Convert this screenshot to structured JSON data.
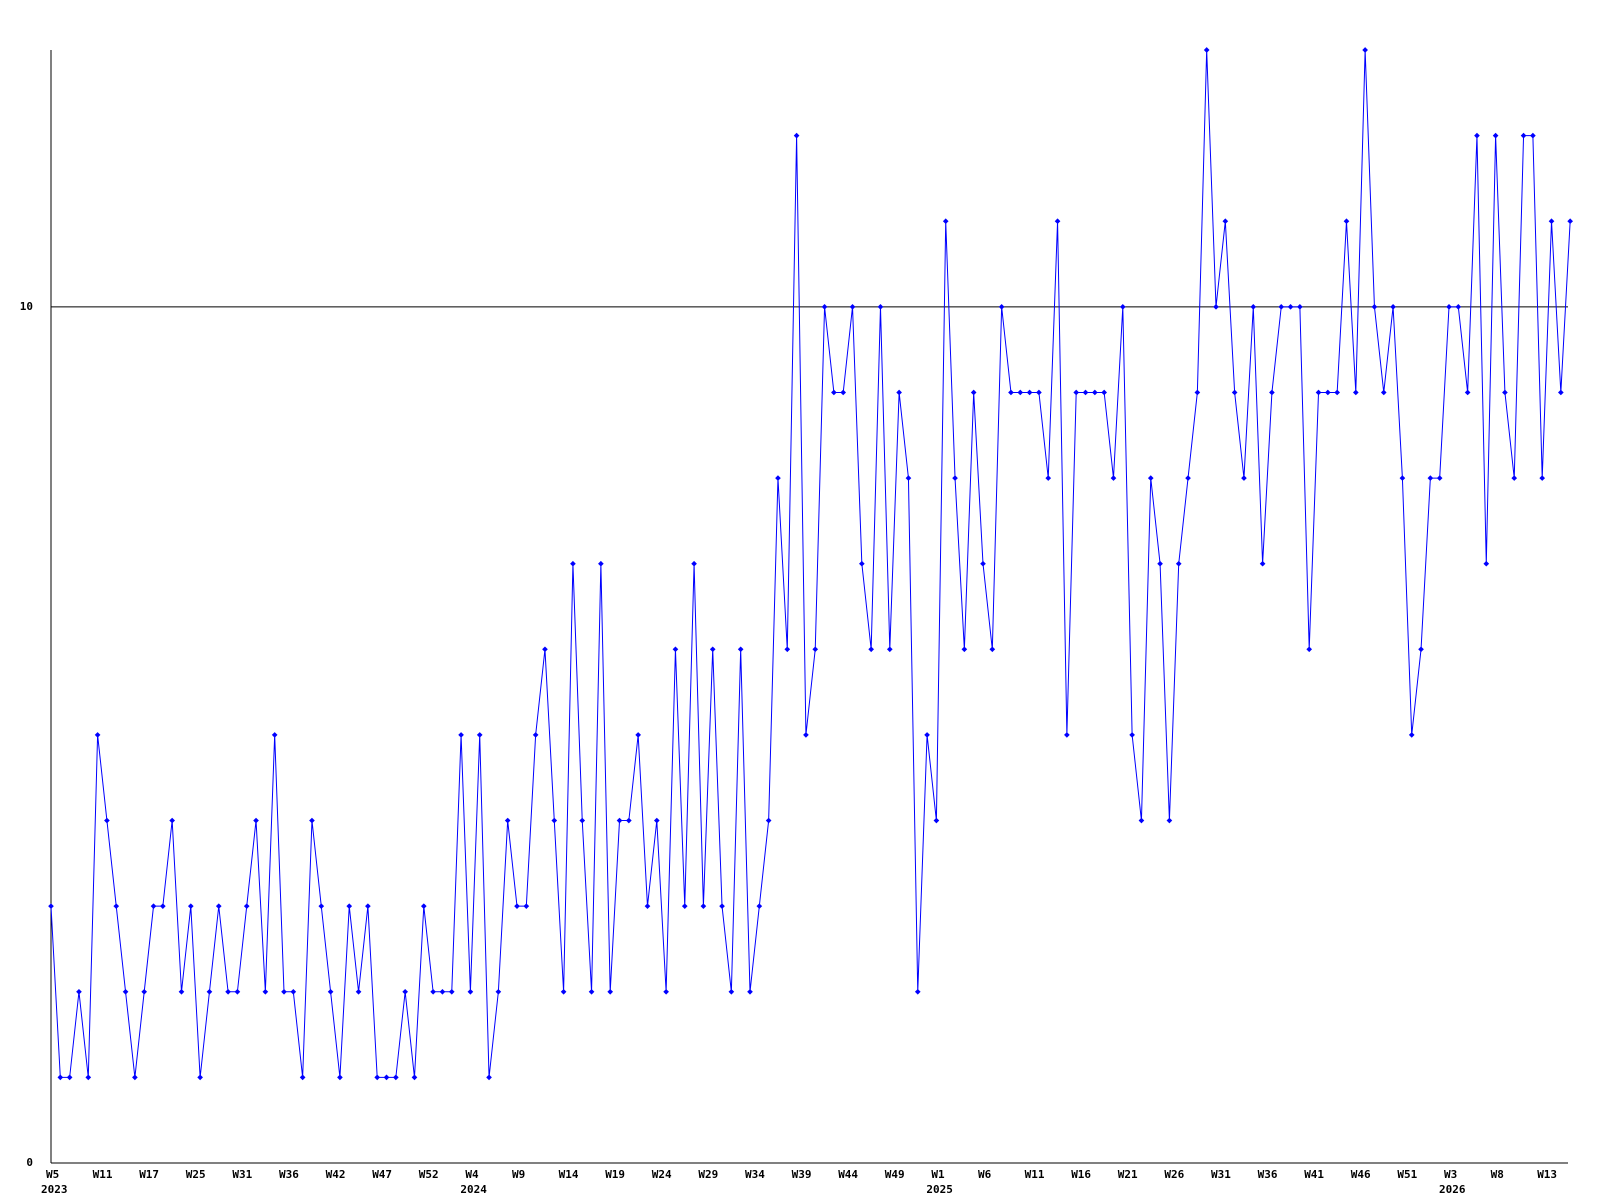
{
  "chart_data": {
    "type": "line",
    "categories": [
      "W5",
      null,
      null,
      null,
      null,
      "W11",
      null,
      null,
      null,
      null,
      "W17",
      null,
      null,
      null,
      null,
      "W25",
      null,
      null,
      null,
      null,
      "W31",
      null,
      null,
      null,
      null,
      "W36",
      null,
      null,
      null,
      null,
      "W42",
      null,
      null,
      null,
      null,
      "W47",
      null,
      null,
      null,
      null,
      "W52",
      null,
      null,
      null,
      null,
      "W4",
      null,
      null,
      null,
      null,
      "W9",
      null,
      null,
      null,
      null,
      "W14",
      null,
      null,
      null,
      null,
      "W19",
      null,
      null,
      null,
      null,
      "W24",
      null,
      null,
      null,
      null,
      "W29",
      null,
      null,
      null,
      null,
      "W34",
      null,
      null,
      null,
      null,
      "W39",
      null,
      null,
      null,
      null,
      "W44",
      null,
      null,
      null,
      null,
      "W49",
      null,
      null,
      null,
      null,
      "W1",
      null,
      null,
      null,
      null,
      "W6",
      null,
      null,
      null,
      null,
      "W11",
      null,
      null,
      null,
      null,
      "W16",
      null,
      null,
      null,
      null,
      "W21",
      null,
      null,
      null,
      null,
      "W26",
      null,
      null,
      null,
      null,
      "W31",
      null,
      null,
      null,
      null,
      "W36",
      null,
      null,
      null,
      null,
      "W41",
      null,
      null,
      null,
      null,
      "W46",
      null,
      null,
      null,
      null,
      "W51",
      null,
      null,
      null,
      null,
      "W3",
      null,
      null,
      null,
      null,
      "W8",
      null,
      null,
      null,
      null,
      "W13",
      null,
      null,
      null
    ],
    "category_years": [
      "2023",
      null,
      null,
      null,
      null,
      null,
      null,
      null,
      null,
      null,
      null,
      null,
      null,
      null,
      null,
      null,
      null,
      null,
      null,
      null,
      null,
      null,
      null,
      null,
      null,
      null,
      null,
      null,
      null,
      null,
      null,
      null,
      null,
      null,
      null,
      null,
      null,
      null,
      null,
      null,
      null,
      null,
      null,
      null,
      null,
      "2024",
      null,
      null,
      null,
      null,
      null,
      null,
      null,
      null,
      null,
      null,
      null,
      null,
      null,
      null,
      null,
      null,
      null,
      null,
      null,
      null,
      null,
      null,
      null,
      null,
      null,
      null,
      null,
      null,
      null,
      null,
      null,
      null,
      null,
      null,
      null,
      null,
      null,
      null,
      null,
      null,
      null,
      null,
      null,
      null,
      null,
      null,
      null,
      null,
      null,
      "2025",
      null,
      null,
      null,
      null,
      null,
      null,
      null,
      null,
      null,
      null,
      null,
      null,
      null,
      null,
      null,
      null,
      null,
      null,
      null,
      null,
      null,
      null,
      null,
      null,
      null,
      null,
      null,
      null,
      null,
      null,
      null,
      null,
      null,
      null,
      null,
      null,
      null,
      null,
      null,
      null,
      null,
      null,
      null,
      null,
      null,
      null,
      null,
      null,
      null,
      null,
      null,
      null,
      null,
      null,
      "2026",
      null,
      null,
      null,
      null,
      null,
      null,
      null,
      null,
      null,
      null,
      null,
      null,
      null
    ],
    "series": [
      {
        "color": "#0000ff",
        "values": [
          3,
          1,
          1,
          2,
          1,
          5,
          4,
          3,
          2,
          1,
          2,
          3,
          3,
          4,
          2,
          3,
          1,
          2,
          3,
          2,
          2,
          3,
          4,
          2,
          5,
          2,
          2,
          1,
          4,
          3,
          2,
          1,
          3,
          2,
          3,
          1,
          1,
          1,
          2,
          1,
          3,
          2,
          2,
          2,
          5,
          2,
          5,
          1,
          2,
          4,
          3,
          3,
          5,
          6,
          4,
          2,
          7,
          4,
          2,
          7,
          2,
          4,
          4,
          5,
          3,
          4,
          2,
          6,
          3,
          7,
          3,
          6,
          3,
          2,
          6,
          2,
          3,
          4,
          8,
          6,
          12,
          5,
          6,
          10,
          9,
          9,
          10,
          7,
          6,
          10,
          6,
          9,
          8,
          2,
          5,
          4,
          11,
          8,
          6,
          9,
          7,
          6,
          10,
          9,
          9,
          9,
          9,
          8,
          11,
          5,
          9,
          9,
          9,
          9,
          8,
          10,
          5,
          4,
          8,
          7,
          4,
          7,
          8,
          9,
          13,
          10,
          11,
          9,
          8,
          10,
          7,
          9,
          10,
          10,
          10,
          6,
          9,
          9,
          9,
          11,
          9,
          13,
          10,
          9,
          10,
          8,
          5,
          6,
          8,
          8,
          10,
          10,
          9,
          12,
          7,
          12,
          9,
          8,
          12,
          12,
          8,
          11,
          9,
          11
        ]
      }
    ],
    "ylim": [
      0,
      13
    ],
    "yticks": [
      0,
      10
    ],
    "grid": true
  }
}
